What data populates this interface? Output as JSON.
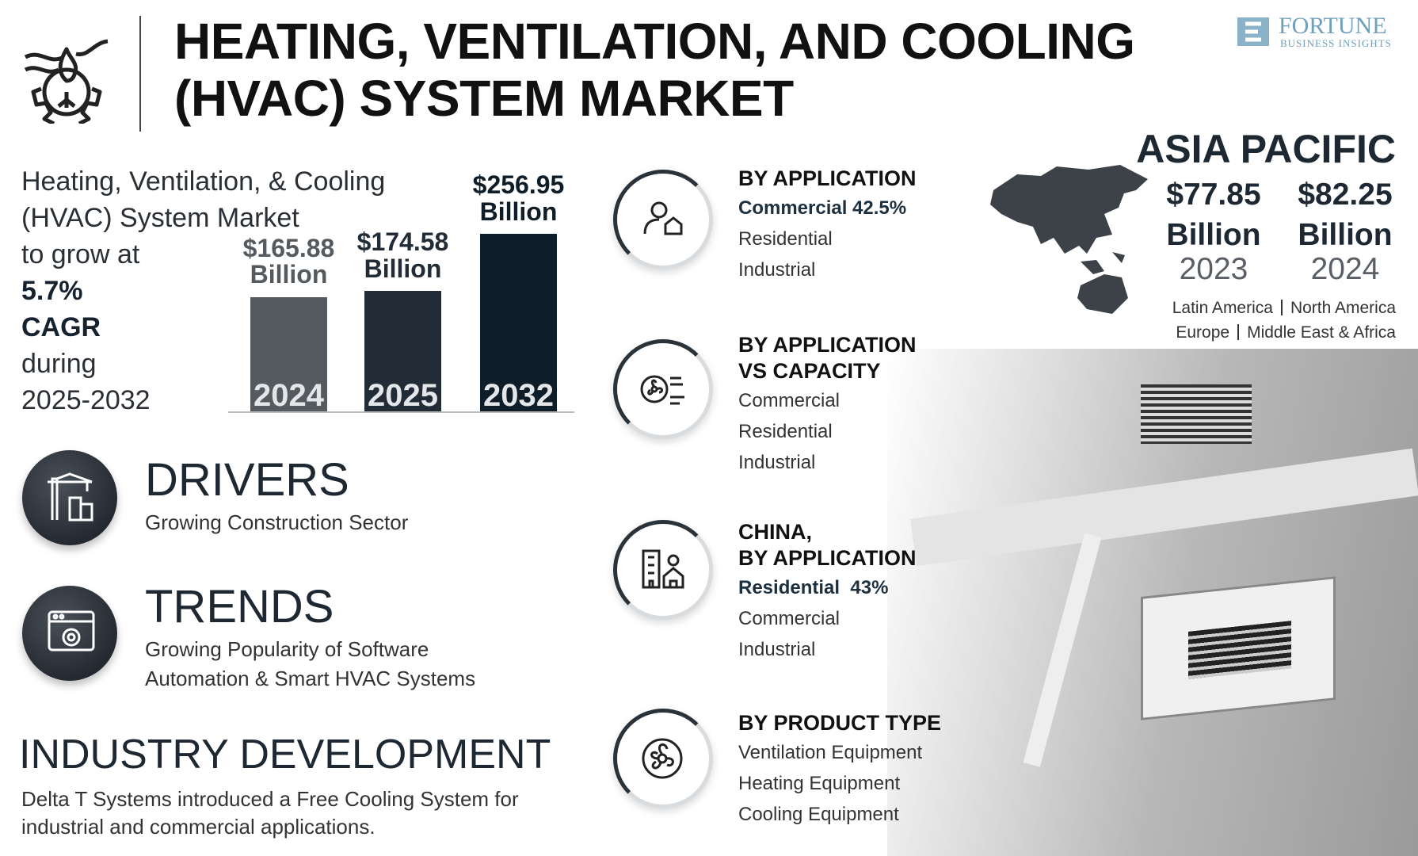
{
  "header": {
    "title_lines": [
      "HEATING, VENTILATION, AND COOLING",
      "(HVAC) SYSTEM MARKET"
    ],
    "brand": "FORTUNE",
    "brand_sub": "BUSINESS INSIGHTS"
  },
  "intro": {
    "lines": [
      "Heating, Ventilation, & Cooling",
      "(HVAC) System Market",
      "to grow at"
    ],
    "highlight_lines": [
      "5.7%",
      "CAGR"
    ],
    "after_lines": [
      "during",
      "2025-2032"
    ]
  },
  "chart_data": {
    "type": "bar",
    "categories": [
      "2024",
      "2025",
      "2032"
    ],
    "values": [
      165.88,
      174.58,
      256.95
    ],
    "value_labels": [
      "$165.88 Billion",
      "$174.58 Billion",
      "$256.95 Billion"
    ],
    "colors": [
      "#555a5f",
      "#222c36",
      "#0f1d29"
    ]
  },
  "drivers": {
    "title": "DRIVERS",
    "lines": [
      "Growing Construction Sector"
    ]
  },
  "trends": {
    "title": "TRENDS",
    "lines": [
      "Growing Popularity of Software",
      "Automation & Smart HVAC Systems"
    ]
  },
  "industry_development": {
    "title": "INDUSTRY DEVELOPMENT",
    "lines": [
      "Delta T Systems introduced a Free Cooling System for",
      "industrial and commercial applications."
    ]
  },
  "segments": [
    {
      "title_lines": [
        "BY APPLICATION"
      ],
      "highlight": "Commercial 42.5%",
      "items": [
        "Residential",
        "Industrial"
      ]
    },
    {
      "title_lines": [
        "BY APPLICATION",
        "VS CAPACITY"
      ],
      "items": [
        "Commercial",
        "Residential",
        "Industrial"
      ]
    },
    {
      "title_lines": [
        "CHINA,",
        "BY APPLICATION"
      ],
      "highlight": "Residential  43%",
      "items": [
        "Commercial",
        "Industrial"
      ]
    },
    {
      "title_lines": [
        "BY PRODUCT TYPE"
      ],
      "items": [
        "Ventilation Equipment",
        "Heating Equipment",
        "Cooling Equipment"
      ]
    }
  ],
  "region": {
    "name": "ASIA PACIFIC",
    "figures": [
      {
        "value": "$77.85",
        "unit": "Billion",
        "year": "2023"
      },
      {
        "value": "$82.25",
        "unit": "Billion",
        "year": "2024"
      }
    ],
    "other_regions": [
      [
        "Latin America",
        "North America"
      ],
      [
        "Europe",
        "Middle East & Africa"
      ]
    ]
  }
}
